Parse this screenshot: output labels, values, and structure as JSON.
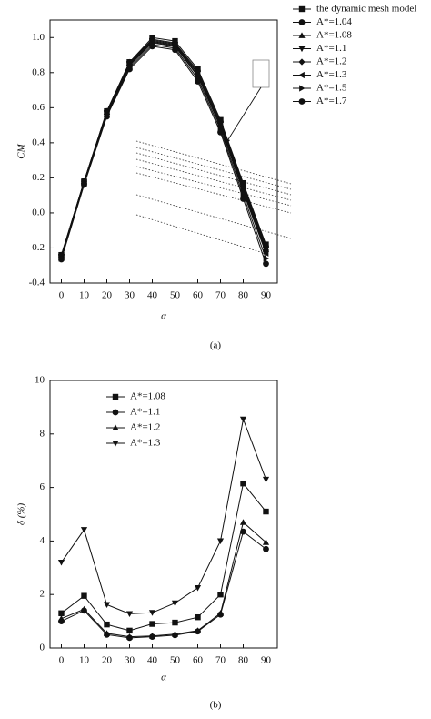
{
  "chart_data": [
    {
      "type": "line",
      "caption": "(a)",
      "x_label": "α",
      "y_label": "CM",
      "x": [
        0,
        10,
        20,
        30,
        40,
        50,
        60,
        70,
        80,
        90
      ],
      "xlim": [
        -5,
        95
      ],
      "xticks": [
        0,
        10,
        20,
        30,
        40,
        50,
        60,
        70,
        80,
        90
      ],
      "ylim": [
        -0.4,
        1.1
      ],
      "yticks": [
        -0.4,
        -0.2,
        {
          "value": 0,
          "label": "0.0"
        },
        0.2,
        0.4,
        0.6,
        0.8,
        {
          "value": 1,
          "label": "1.0"
        }
      ],
      "legend": "outside right",
      "series": [
        {
          "name": "the dynamic mesh model",
          "color": "#111",
          "marker": "square",
          "values": [
            -0.24,
            0.18,
            0.58,
            0.86,
            1.0,
            0.98,
            0.82,
            0.53,
            0.17,
            -0.18
          ]
        },
        {
          "name": "A*=1.04",
          "color": "#111",
          "marker": "circle",
          "values": [
            -0.24,
            0.18,
            0.58,
            0.86,
            0.99,
            0.97,
            0.81,
            0.52,
            0.16,
            -0.19
          ]
        },
        {
          "name": "A*=1.08",
          "color": "#111",
          "marker": "triangle-up",
          "values": [
            -0.245,
            0.178,
            0.575,
            0.855,
            0.985,
            0.965,
            0.8,
            0.51,
            0.15,
            -0.2
          ]
        },
        {
          "name": "A*=1.1",
          "color": "#111",
          "marker": "triangle-down",
          "values": [
            -0.25,
            0.175,
            0.57,
            0.85,
            0.98,
            0.96,
            0.795,
            0.505,
            0.14,
            -0.21
          ]
        },
        {
          "name": "A*=1.2",
          "color": "#111",
          "marker": "diamond",
          "values": [
            -0.25,
            0.17,
            0.565,
            0.845,
            0.975,
            0.955,
            0.785,
            0.495,
            0.13,
            -0.22
          ]
        },
        {
          "name": "A*=1.3",
          "color": "#111",
          "marker": "triangle-left",
          "values": [
            -0.255,
            0.168,
            0.56,
            0.84,
            0.97,
            0.95,
            0.78,
            0.49,
            0.12,
            -0.23
          ]
        },
        {
          "name": "A*=1.5",
          "color": "#111",
          "marker": "triangle-right",
          "values": [
            -0.26,
            0.165,
            0.555,
            0.83,
            0.96,
            0.94,
            0.765,
            0.475,
            0.1,
            -0.26
          ]
        },
        {
          "name": "A*=1.7",
          "color": "#111",
          "marker": "circle",
          "values": [
            -0.265,
            0.16,
            0.55,
            0.82,
            0.95,
            0.93,
            0.75,
            0.46,
            0.08,
            -0.29
          ]
        }
      ]
    },
    {
      "type": "line",
      "caption": "(b)",
      "x_label": "α",
      "y_label": "δ (%)",
      "x": [
        0,
        10,
        20,
        30,
        40,
        50,
        60,
        70,
        80,
        90
      ],
      "xlim": [
        -5,
        95
      ],
      "xticks": [
        0,
        10,
        20,
        30,
        40,
        50,
        60,
        70,
        80,
        90
      ],
      "ylim": [
        0,
        10
      ],
      "yticks": [
        0,
        2,
        4,
        6,
        8,
        10
      ],
      "legend": "upper left",
      "series": [
        {
          "name": "A*=1.08",
          "color": "#111",
          "marker": "square",
          "values": [
            1.3,
            1.95,
            0.88,
            0.65,
            0.9,
            0.95,
            1.15,
            2.0,
            6.15,
            5.1
          ]
        },
        {
          "name": "A*=1.1",
          "color": "#111",
          "marker": "circle",
          "values": [
            1.0,
            1.4,
            0.5,
            0.38,
            0.42,
            0.48,
            0.62,
            1.25,
            4.35,
            3.7
          ]
        },
        {
          "name": "A*=1.2",
          "color": "#111",
          "marker": "triangle-up",
          "values": [
            1.1,
            1.45,
            0.55,
            0.42,
            0.45,
            0.52,
            0.65,
            1.3,
            4.7,
            3.95
          ]
        },
        {
          "name": "A*=1.3",
          "color": "#111",
          "marker": "triangle-down",
          "values": [
            3.2,
            4.42,
            1.62,
            1.28,
            1.32,
            1.68,
            2.25,
            4.0,
            8.55,
            6.3
          ]
        }
      ]
    }
  ]
}
